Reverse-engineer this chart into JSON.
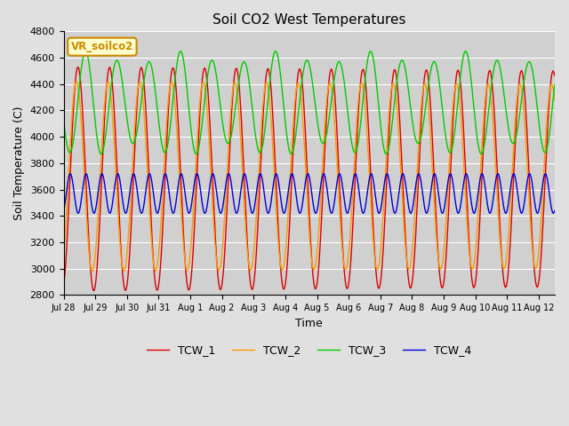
{
  "title": "Soil CO2 West Temperatures",
  "xlabel": "Time",
  "ylabel": "Soil Temperature (C)",
  "ylim": [
    2800,
    4800
  ],
  "yticks": [
    2800,
    3000,
    3200,
    3400,
    3600,
    3800,
    4000,
    4200,
    4400,
    4600,
    4800
  ],
  "xtick_labels": [
    "Jul 28",
    "Jul 29",
    "Jul 30",
    "Jul 31",
    "Aug 1",
    "Aug 2",
    "Aug 3",
    "Aug 4",
    "Aug 5",
    "Aug 6",
    "Aug 7",
    "Aug 8",
    "Aug 9",
    "Aug 10",
    "Aug 11",
    "Aug 12"
  ],
  "background_color": "#e0e0e0",
  "plot_bg_color": "#d0d0d0",
  "legend_entries": [
    "TCW_1",
    "TCW_2",
    "TCW_3",
    "TCW_4"
  ],
  "line_colors": [
    "#dd0000",
    "#ff9900",
    "#00cc00",
    "#0000dd"
  ],
  "annotation_text": "VR_soilco2",
  "annotation_color": "#cc8800",
  "annotation_bg": "#ffffcc",
  "num_days": 15.5,
  "period_hours": 24
}
